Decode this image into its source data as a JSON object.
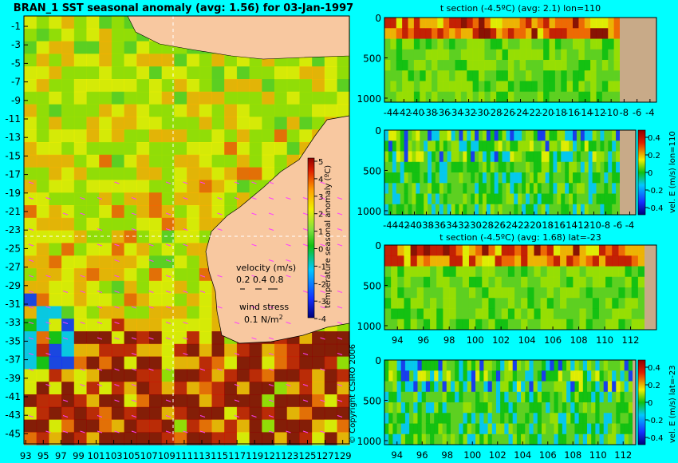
{
  "colors": {
    "background": "#00ffff",
    "land": "#f8c8a0",
    "land_panel": "#c8aa88"
  },
  "map": {
    "title": "BRAN_1 SST seasonal anomaly (avg: 1.56) for 03-Jan-1997",
    "lat_ticks": [
      "-1",
      "-3",
      "-5",
      "-7",
      "-9",
      "-11",
      "-13",
      "-15",
      "-17",
      "-19",
      "-21",
      "-23",
      "-25",
      "-27",
      "-29",
      "-31",
      "-33",
      "-35",
      "-37",
      "-39",
      "-41",
      "-43",
      "-45"
    ],
    "lon_ticks": [
      "93",
      "95",
      "97",
      "99",
      "101",
      "103",
      "105",
      "107",
      "109",
      "111",
      "113",
      "115",
      "117",
      "119",
      "121",
      "123",
      "125",
      "127",
      "129"
    ],
    "colorbar_label": "temperature seasonal anomaly (ºC)",
    "colorbar_ticks": [
      "5",
      "4",
      "3",
      "2",
      "1",
      "0",
      "-1",
      "-2",
      "-3",
      "-4"
    ],
    "velocity_label": "velocity (m/s)",
    "velocity_scale": "0.2 0.4 0.8",
    "wind_label": "wind stress",
    "wind_scale": "0.1 N/m",
    "wind_exp": "2",
    "copyright": "© Copyright CSIRO 2006"
  },
  "panels": [
    {
      "title": "t section (-4.5ºC) (avg: 2.1) lon=110",
      "y_ticks": [
        "0",
        "500",
        "1000"
      ],
      "x_ticks": [
        "-44",
        "-42",
        "-40",
        "-38",
        "-36",
        "-34",
        "-32",
        "-30",
        "-28",
        "-26",
        "-24",
        "-22",
        "-20",
        "-18",
        "-16",
        "-14",
        "-12",
        "-10",
        "-8",
        "-6",
        "-4"
      ],
      "colorbar_label": ""
    },
    {
      "title": "",
      "y_ticks": [
        "0",
        "500",
        "1000"
      ],
      "x_ticks": [
        "-44",
        "-42",
        "-40",
        "-38",
        "-36",
        "-34",
        "-32",
        "-30",
        "-28",
        "-26",
        "-24",
        "-22",
        "-20",
        "-18",
        "-16",
        "-14",
        "-12",
        "-10",
        "-8",
        "-6",
        "-4"
      ],
      "colorbar_label": "vel. E (m/s) lon=110",
      "colorbar_ticks": [
        "0.4",
        "0.2",
        "0",
        "-0.2",
        "-0.4"
      ]
    },
    {
      "title": "t section (-4.5ºC) (avg: 1.68) lat=-23",
      "y_ticks": [
        "0",
        "500",
        "1000"
      ],
      "x_ticks": [
        "94",
        "96",
        "98",
        "100",
        "102",
        "104",
        "106",
        "108",
        "110",
        "112"
      ],
      "colorbar_label": ""
    },
    {
      "title": "",
      "y_ticks": [
        "0",
        "500",
        "1000"
      ],
      "x_ticks": [
        "94",
        "96",
        "98",
        "100",
        "102",
        "104",
        "106",
        "108",
        "110",
        "112"
      ],
      "colorbar_label": "vel. E (m/s) lat=-23",
      "colorbar_ticks": [
        "0.4",
        "0.2",
        "0",
        "-0.2",
        "-0.4"
      ]
    }
  ],
  "chart_data": [
    {
      "type": "heatmap",
      "title": "BRAN_1 SST seasonal anomaly (avg: 1.56) for 03-Jan-1997",
      "x_range": [
        93,
        130
      ],
      "y_range": [
        -45,
        0
      ],
      "colorbar_range": [
        -4,
        5
      ],
      "colorbar_label": "temperature seasonal anomaly (ºC)"
    },
    {
      "type": "heatmap",
      "title": "t section (-4.5ºC) (avg: 2.1) lon=110",
      "x_range": [
        -45,
        -3
      ],
      "y_range": [
        1050,
        0
      ]
    },
    {
      "type": "heatmap",
      "title": "",
      "x_range": [
        -45,
        -3
      ],
      "y_range": [
        1050,
        0
      ],
      "colorbar_range": [
        -0.45,
        0.45
      ],
      "colorbar_label": "vel. E (m/s) lon=110"
    },
    {
      "type": "heatmap",
      "title": "t section (-4.5ºC) (avg: 1.68) lat=-23",
      "x_range": [
        93,
        114
      ],
      "y_range": [
        1050,
        0
      ]
    },
    {
      "type": "heatmap",
      "title": "",
      "x_range": [
        93,
        113
      ],
      "y_range": [
        1050,
        0
      ],
      "colorbar_range": [
        -0.45,
        0.45
      ],
      "colorbar_label": "vel. E (m/s) lat=-23"
    }
  ]
}
